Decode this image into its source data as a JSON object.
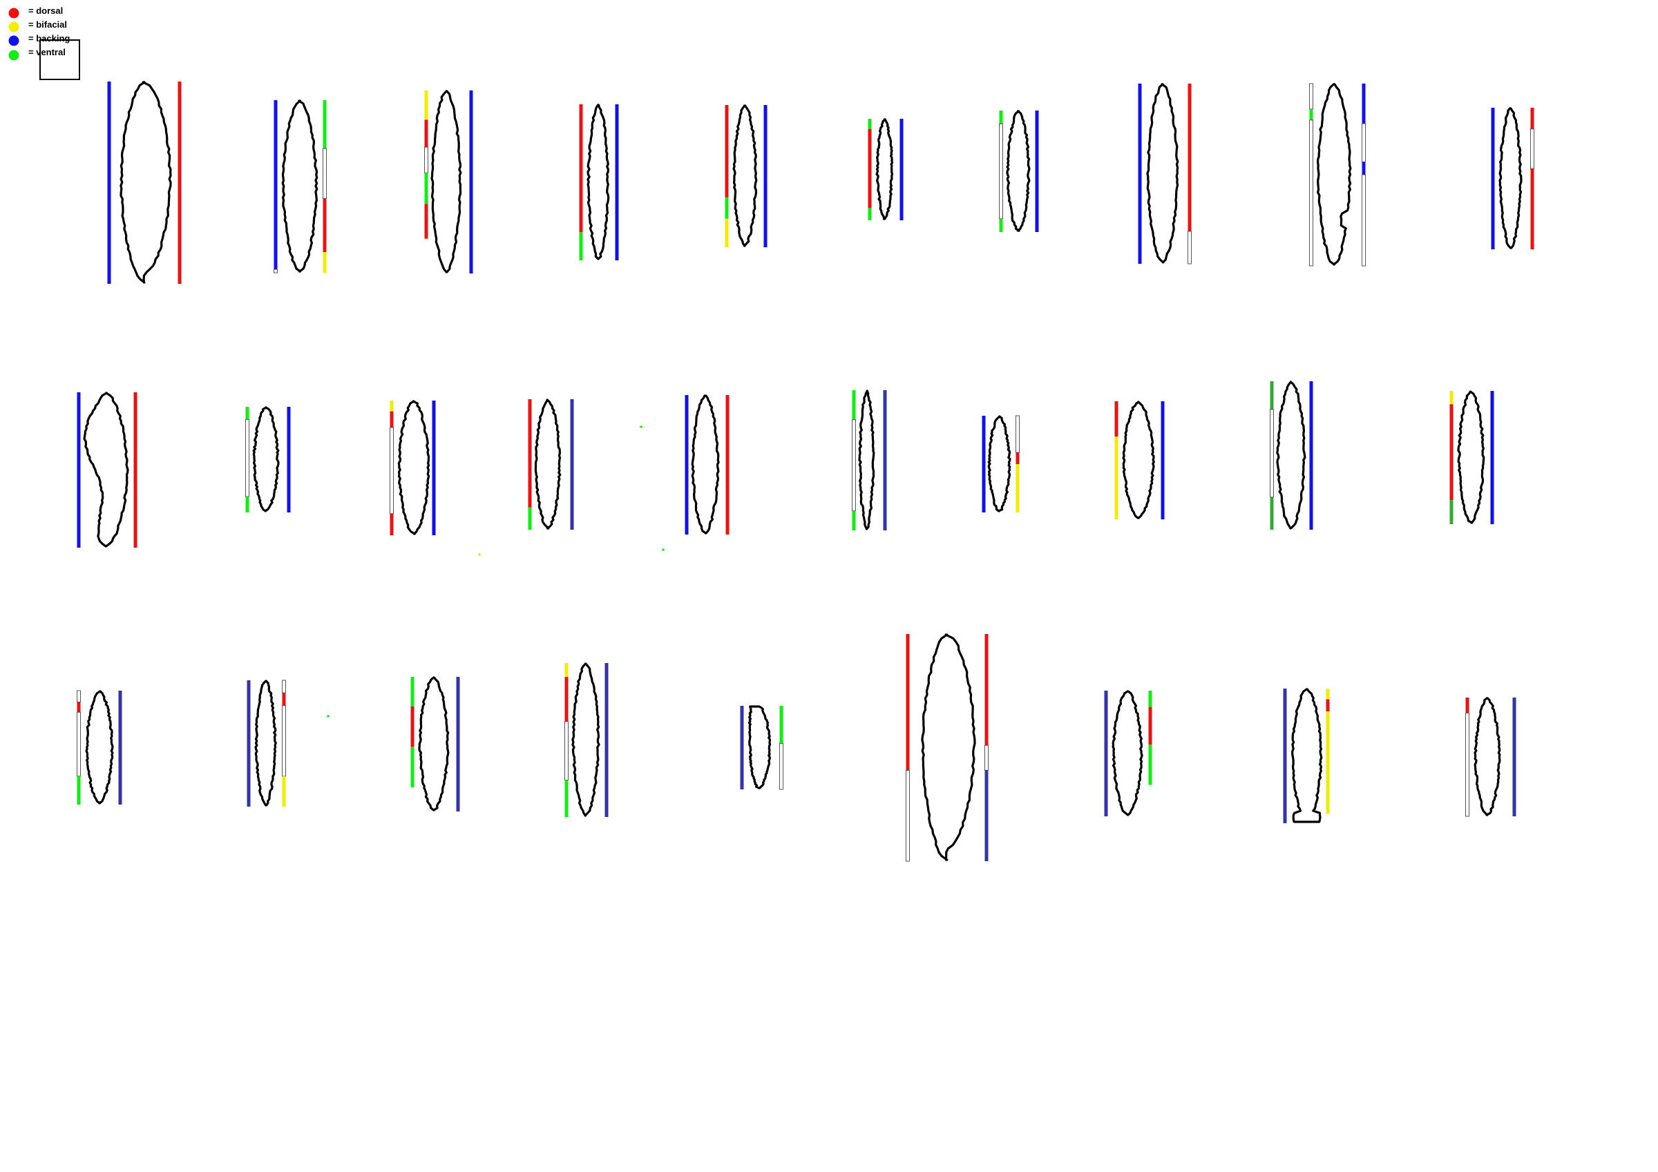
{
  "legend": [
    {
      "label": "= dorsal",
      "color": "#ee1111"
    },
    {
      "label": "= bifacial",
      "color": "#f2ee00"
    },
    {
      "label": "= backing",
      "color": "#1111ee"
    },
    {
      "label": "= ventral",
      "color": "#11ee11"
    }
  ],
  "colors": {
    "dorsal": "#ee1111",
    "bifacial": "#f2ee00",
    "backing": "#1111ee",
    "backing_dark": "#3333aa",
    "ventral": "#11ee11",
    "ventral_dark": "#33aa33",
    "outline": "#000000"
  },
  "artefacts": [
    {
      "row": 1,
      "left_bar": [
        "backing"
      ],
      "right_bar": [
        "dorsal"
      ]
    },
    {
      "row": 1,
      "left_bar": [
        "backing",
        "empty"
      ],
      "right_bar": [
        "ventral",
        "empty",
        "dorsal",
        "bifacial"
      ]
    },
    {
      "row": 1,
      "left_bar": [
        "bifacial",
        "dorsal",
        "empty",
        "ventral",
        "dorsal"
      ],
      "right_bar": [
        "backing"
      ]
    },
    {
      "row": 1,
      "left_bar": [
        "dorsal",
        "ventral"
      ],
      "right_bar": [
        "backing"
      ]
    },
    {
      "row": 1,
      "left_bar": [
        "dorsal",
        "ventral",
        "bifacial"
      ],
      "right_bar": [
        "backing"
      ]
    },
    {
      "row": 1,
      "left_bar": [
        "ventral",
        "dorsal",
        "ventral"
      ],
      "right_bar": [
        "backing"
      ]
    },
    {
      "row": 1,
      "left_bar": [
        "ventral",
        "empty",
        "ventral"
      ],
      "right_bar": [
        "backing"
      ]
    },
    {
      "row": 1,
      "left_bar": [
        "backing"
      ],
      "right_bar": [
        "dorsal",
        "empty"
      ]
    },
    {
      "row": 1,
      "left_bar": [
        "empty",
        "ventral",
        "empty"
      ],
      "right_bar": [
        "backing",
        "empty",
        "backing",
        "empty"
      ]
    },
    {
      "row": 1,
      "left_bar": [
        "backing"
      ],
      "right_bar": [
        "dorsal",
        "empty",
        "dorsal"
      ]
    },
    {
      "row": 2,
      "left_bar": [
        "backing"
      ],
      "right_bar": [
        "dorsal"
      ]
    },
    {
      "row": 2,
      "left_bar": [
        "ventral",
        "empty",
        "ventral"
      ],
      "right_bar": [
        "backing"
      ]
    },
    {
      "row": 2,
      "left_bar": [
        "bifacial",
        "dorsal",
        "empty",
        "dorsal"
      ],
      "right_bar": [
        "backing"
      ]
    },
    {
      "row": 2,
      "left_bar": [
        "dorsal",
        "ventral"
      ],
      "right_bar": [
        "backing_dark"
      ]
    },
    {
      "row": 2,
      "left_bar": [
        "backing"
      ],
      "right_bar": [
        "dorsal"
      ]
    },
    {
      "row": 2,
      "left_bar": [
        "ventral",
        "empty",
        "ventral"
      ],
      "right_bar": [
        "backing_dark"
      ]
    },
    {
      "row": 2,
      "left_bar": [
        "backing"
      ],
      "right_bar": [
        "empty",
        "dorsal",
        "bifacial"
      ]
    },
    {
      "row": 2,
      "left_bar": [
        "dorsal",
        "bifacial"
      ],
      "right_bar": [
        "backing"
      ]
    },
    {
      "row": 2,
      "left_bar": [
        "ventral_dark",
        "empty",
        "ventral_dark"
      ],
      "right_bar": [
        "backing"
      ]
    },
    {
      "row": 2,
      "left_bar": [
        "bifacial",
        "dorsal",
        "ventral_dark"
      ],
      "right_bar": [
        "backing"
      ]
    },
    {
      "row": 3,
      "left_bar": [
        "empty",
        "dorsal",
        "empty",
        "ventral"
      ],
      "right_bar": [
        "backing_dark"
      ]
    },
    {
      "row": 3,
      "left_bar": [
        "backing_dark"
      ],
      "right_bar": [
        "empty",
        "dorsal",
        "empty",
        "bifacial"
      ]
    },
    {
      "row": 3,
      "left_bar": [
        "ventral",
        "dorsal",
        "ventral"
      ],
      "right_bar": [
        "backing_dark"
      ]
    },
    {
      "row": 3,
      "left_bar": [
        "bifacial",
        "dorsal",
        "empty",
        "ventral"
      ],
      "right_bar": [
        "backing_dark"
      ]
    },
    {
      "row": 3,
      "left_bar": [
        "backing_dark"
      ],
      "right_bar": [
        "ventral",
        "empty"
      ]
    },
    {
      "row": 3,
      "left_bar": [
        "dorsal",
        "empty"
      ],
      "right_bar": [
        "dorsal",
        "empty",
        "backing_dark"
      ]
    },
    {
      "row": 3,
      "left_bar": [
        "backing_dark"
      ],
      "right_bar": [
        "ventral",
        "dorsal",
        "ventral"
      ]
    },
    {
      "row": 3,
      "left_bar": [
        "backing_dark"
      ],
      "right_bar": [
        "bifacial",
        "dorsal",
        "bifacial"
      ]
    },
    {
      "row": 3,
      "left_bar": [
        "dorsal",
        "empty"
      ],
      "right_bar": [
        "backing_dark"
      ]
    }
  ]
}
